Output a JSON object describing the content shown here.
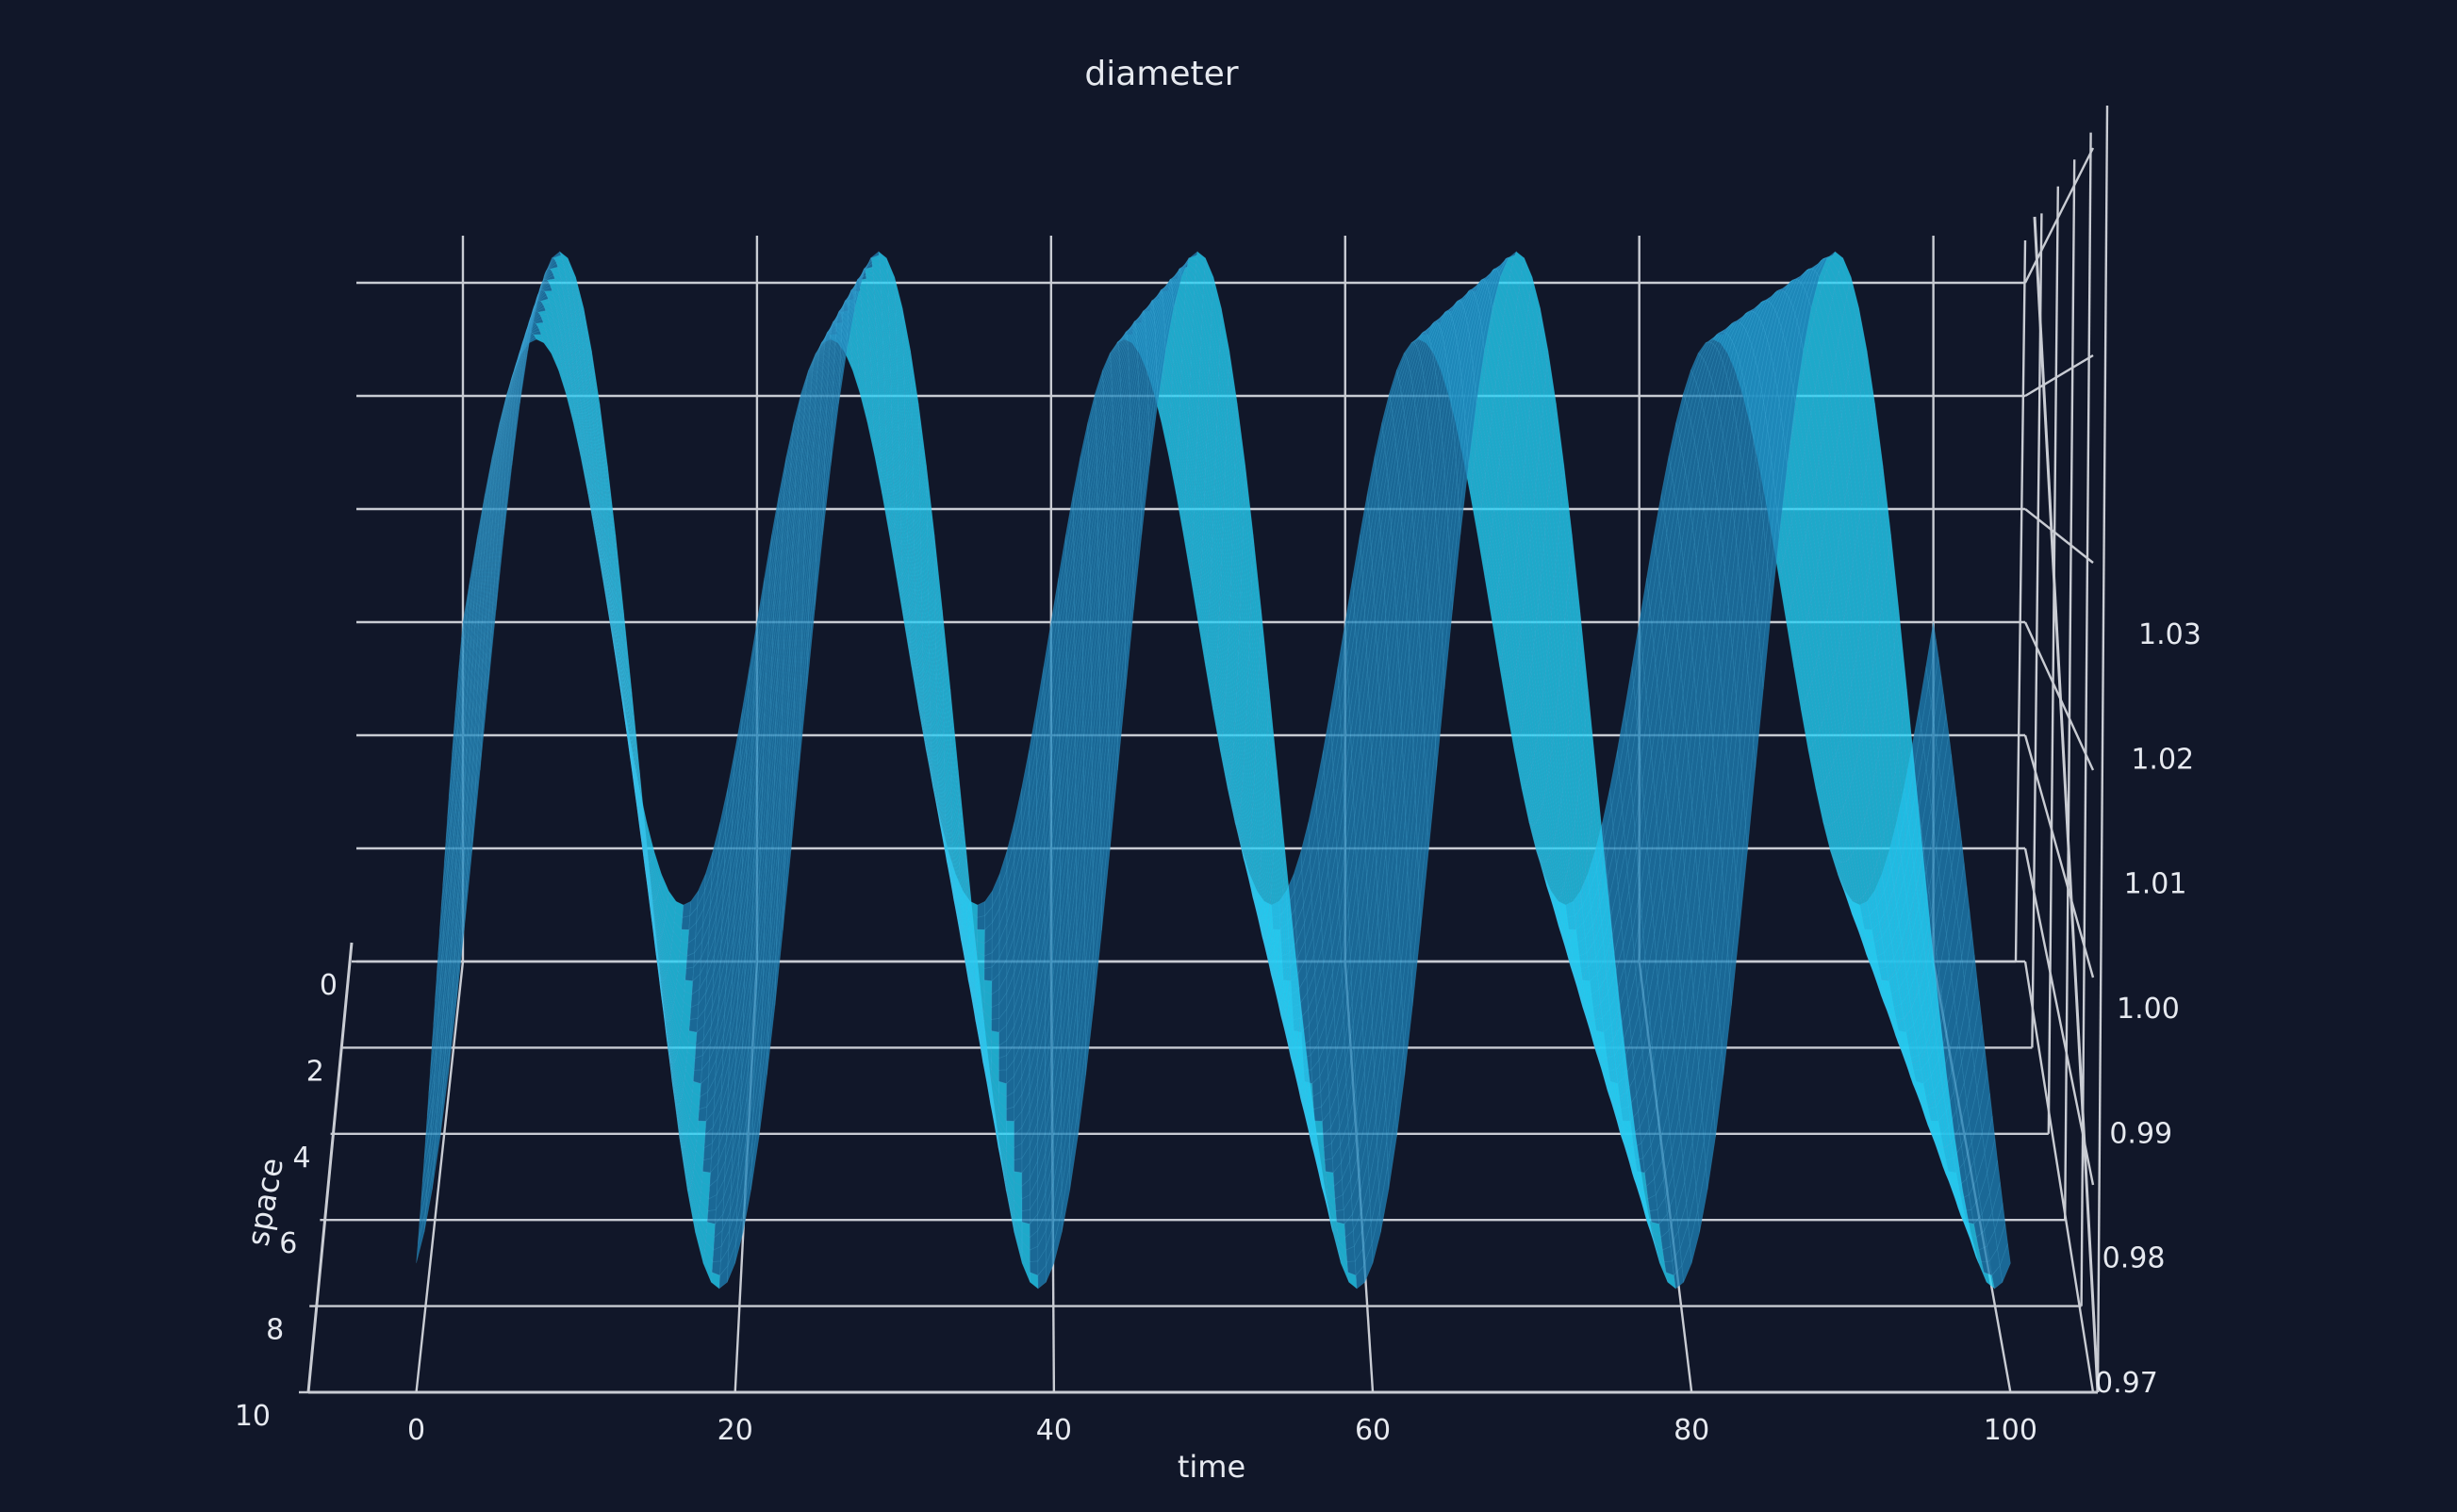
{
  "chart_data": {
    "type": "surface",
    "title": "diameter",
    "xlabel": "time",
    "ylabel": "space",
    "zlabel": "",
    "x_ticks": [
      "0",
      "20",
      "40",
      "60",
      "80",
      "100"
    ],
    "y_ticks": [
      "0",
      "2",
      "4",
      "6",
      "8",
      "10"
    ],
    "z_ticks": [
      "0.97",
      "0.98",
      "0.99",
      "1.00",
      "1.01",
      "1.02",
      "1.03"
    ],
    "xlim": [
      -5,
      104
    ],
    "ylim": [
      0,
      10
    ],
    "zlim": [
      0.97,
      1.03
    ],
    "surface": {
      "equation": "z = 1 + A*sin(2*pi*(t - 0.4*s)/20)",
      "amplitude": 0.025,
      "period_time": 20,
      "phase_shift_per_space": 0.4,
      "baseline": 1.0,
      "t_range": [
        0,
        100
      ],
      "s_range": [
        0,
        10
      ]
    },
    "grid": true,
    "colors": {
      "background": "#111729",
      "surface_front": "#1e7fb5",
      "surface_back": "#23d2f7",
      "grid": "#c9ccd3",
      "text": "#e6e9ef"
    }
  }
}
